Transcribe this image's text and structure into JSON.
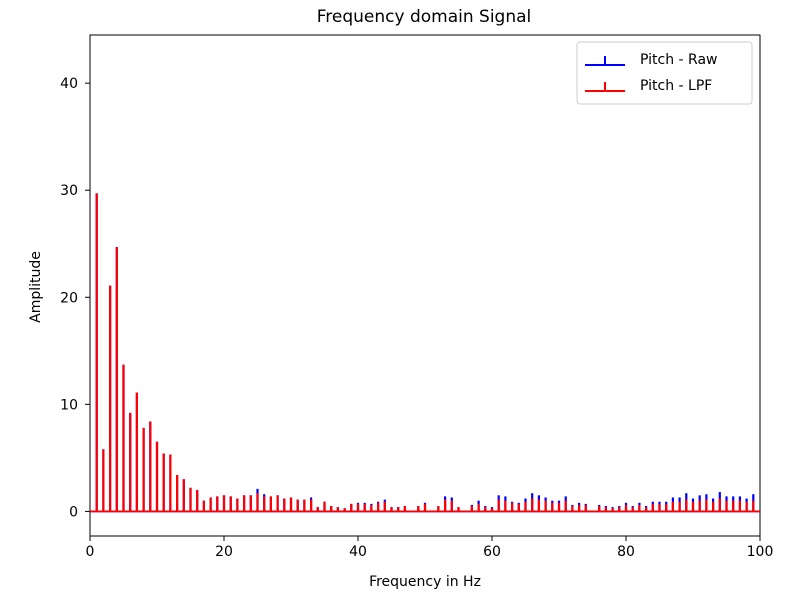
{
  "chart_data": {
    "type": "stem",
    "title": "Frequency domain Signal",
    "xlabel": "Frequency in Hz",
    "ylabel": "Amplitude",
    "xlim": [
      0,
      100
    ],
    "ylim": [
      -2.3,
      44.5
    ],
    "xticks": [
      0,
      20,
      40,
      60,
      80,
      100
    ],
    "yticks": [
      0,
      10,
      20,
      30,
      40
    ],
    "legend_position": "top-right",
    "grid": false,
    "x": [
      1,
      2,
      3,
      4,
      5,
      6,
      7,
      8,
      9,
      10,
      11,
      12,
      13,
      14,
      15,
      16,
      17,
      18,
      19,
      20,
      21,
      22,
      23,
      24,
      25,
      26,
      27,
      28,
      29,
      30,
      31,
      32,
      33,
      34,
      35,
      36,
      37,
      38,
      39,
      40,
      41,
      42,
      43,
      44,
      45,
      46,
      47,
      48,
      49,
      50,
      51,
      52,
      53,
      54,
      55,
      56,
      57,
      58,
      59,
      60,
      61,
      62,
      63,
      64,
      65,
      66,
      67,
      68,
      69,
      70,
      71,
      72,
      73,
      74,
      75,
      76,
      77,
      78,
      79,
      80,
      81,
      82,
      83,
      84,
      85,
      86,
      87,
      88,
      89,
      90,
      91,
      92,
      93,
      94,
      95,
      96,
      97,
      98,
      99,
      100
    ],
    "series": [
      {
        "name": "Pitch - Raw",
        "color": "#0000ff",
        "values": [
          29.7,
          5.8,
          21.1,
          24.7,
          13.7,
          9.2,
          11.1,
          7.8,
          8.4,
          6.5,
          5.4,
          5.3,
          3.4,
          3.0,
          2.2,
          2.0,
          1.0,
          1.3,
          1.4,
          1.5,
          1.4,
          1.2,
          1.5,
          1.5,
          2.1,
          1.6,
          1.4,
          1.5,
          1.2,
          1.3,
          1.1,
          1.1,
          1.3,
          0.4,
          0.9,
          0.5,
          0.4,
          0.3,
          0.7,
          0.8,
          0.8,
          0.7,
          0.9,
          1.1,
          0.4,
          0.4,
          0.5,
          0.0,
          0.5,
          0.8,
          0.0,
          0.5,
          1.4,
          1.3,
          0.4,
          0.0,
          0.6,
          1.0,
          0.5,
          0.4,
          1.5,
          1.4,
          0.9,
          0.8,
          1.2,
          1.7,
          1.5,
          1.3,
          1.0,
          1.0,
          1.4,
          0.6,
          0.8,
          0.7,
          0.0,
          0.6,
          0.5,
          0.4,
          0.5,
          0.8,
          0.5,
          0.8,
          0.5,
          0.9,
          0.9,
          0.9,
          1.3,
          1.3,
          1.7,
          1.2,
          1.5,
          1.6,
          1.2,
          1.8,
          1.4,
          1.4,
          1.4,
          1.2,
          1.6,
          0.0
        ]
      },
      {
        "name": "Pitch - LPF",
        "color": "#ff0000",
        "values": [
          29.7,
          5.8,
          21.1,
          24.7,
          13.7,
          9.2,
          11.1,
          7.8,
          8.4,
          6.5,
          5.4,
          5.3,
          3.4,
          3.0,
          2.2,
          2.0,
          1.0,
          1.3,
          1.4,
          1.5,
          1.4,
          1.2,
          1.5,
          1.5,
          1.7,
          1.4,
          1.4,
          1.5,
          1.2,
          1.3,
          1.1,
          1.1,
          1.1,
          0.4,
          0.9,
          0.5,
          0.4,
          0.3,
          0.7,
          0.7,
          0.7,
          0.6,
          0.8,
          0.9,
          0.4,
          0.4,
          0.5,
          0.0,
          0.5,
          0.7,
          0.0,
          0.5,
          1.1,
          1.0,
          0.4,
          0.0,
          0.5,
          0.7,
          0.4,
          0.3,
          1.1,
          1.0,
          0.8,
          0.7,
          0.9,
          1.2,
          1.1,
          1.0,
          0.8,
          0.8,
          1.0,
          0.5,
          0.6,
          0.6,
          0.0,
          0.5,
          0.4,
          0.3,
          0.4,
          0.6,
          0.4,
          0.6,
          0.4,
          0.7,
          0.7,
          0.7,
          0.9,
          0.9,
          1.1,
          0.9,
          1.0,
          1.1,
          0.9,
          1.2,
          1.0,
          1.0,
          1.0,
          0.9,
          1.0,
          0.0
        ]
      }
    ]
  }
}
